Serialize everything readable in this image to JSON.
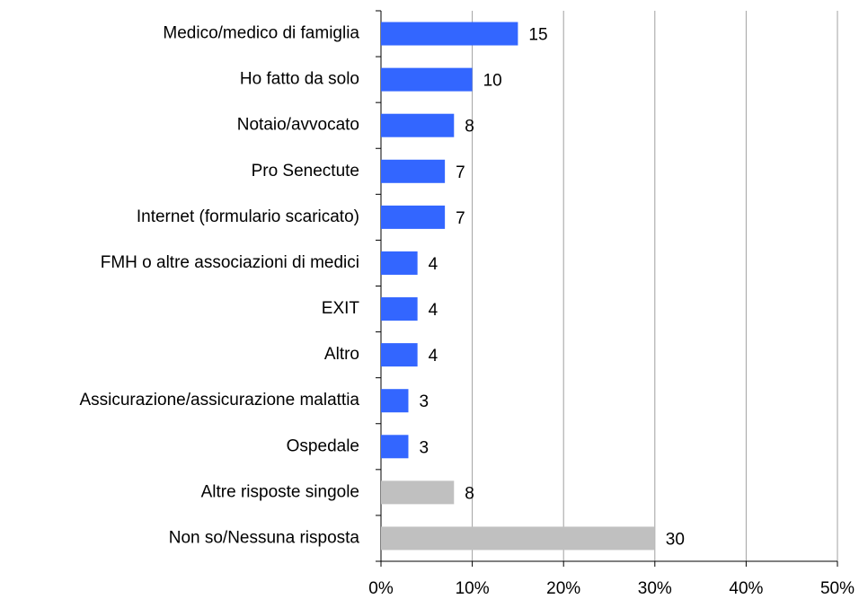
{
  "chart_data": {
    "type": "hbar",
    "categories": [
      "Medico/medico di famiglia",
      "Ho fatto da solo",
      "Notaio/avvocato",
      "Pro Senectute",
      "Internet (formulario scaricato)",
      "FMH o altre associazioni di medici",
      "EXIT",
      "Altro",
      "Assicurazione/assicurazione malattia",
      "Ospedale",
      "Altre risposte singole",
      "Non so/Nessuna risposta"
    ],
    "values": [
      15,
      10,
      8,
      7,
      7,
      4,
      4,
      4,
      3,
      3,
      8,
      30
    ],
    "colors": [
      "#3366ff",
      "#3366ff",
      "#3366ff",
      "#3366ff",
      "#3366ff",
      "#3366ff",
      "#3366ff",
      "#3366ff",
      "#3366ff",
      "#3366ff",
      "#c0c0c0",
      "#c0c0c0"
    ],
    "xlim": [
      0,
      50
    ],
    "xticks": [
      {
        "value": 0,
        "label": "0%"
      },
      {
        "value": 10,
        "label": "10%"
      },
      {
        "value": 20,
        "label": "20%"
      },
      {
        "value": 30,
        "label": "30%"
      },
      {
        "value": 40,
        "label": "40%"
      },
      {
        "value": 50,
        "label": "50%"
      }
    ],
    "grid": true
  }
}
